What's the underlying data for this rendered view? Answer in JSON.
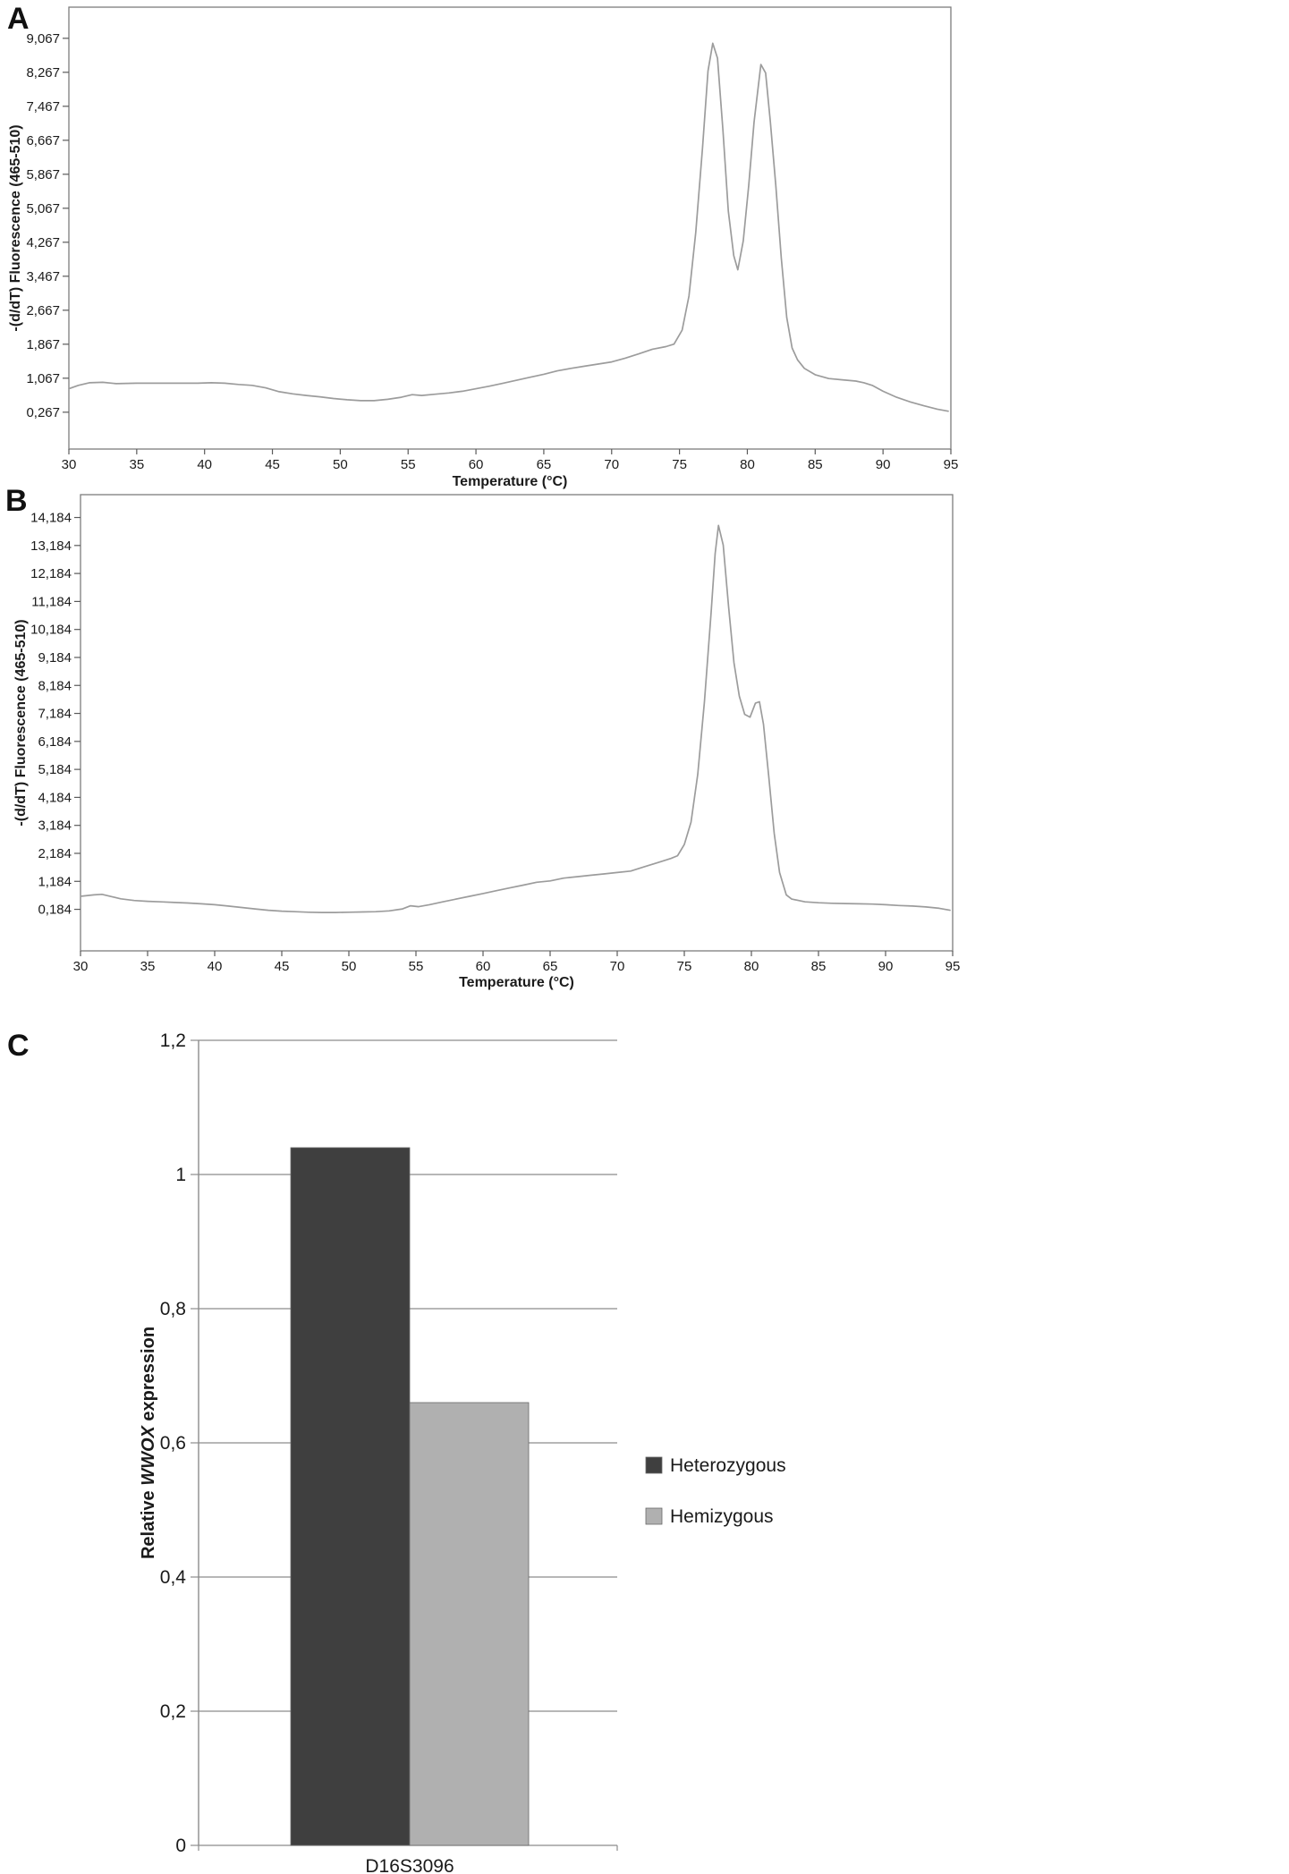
{
  "panels": {
    "a": {
      "label": "A"
    },
    "b": {
      "label": "B"
    },
    "c": {
      "label": "C"
    }
  },
  "chart_data": [
    {
      "id": "panel-a",
      "type": "line",
      "title": "",
      "xlabel": "Temperature (°C)",
      "ylabel": "-(d/dT) Fluorescence (465-510)",
      "xlim": [
        30,
        95
      ],
      "ylim": [
        -0.6,
        9.8
      ],
      "xticks": [
        30,
        35,
        40,
        45,
        50,
        55,
        60,
        65,
        70,
        75,
        80,
        85,
        90,
        95
      ],
      "yticks": [
        {
          "v": 0.267,
          "label": "0,267"
        },
        {
          "v": 1.067,
          "label": "1,067"
        },
        {
          "v": 1.867,
          "label": "1,867"
        },
        {
          "v": 2.667,
          "label": "2,667"
        },
        {
          "v": 3.467,
          "label": "3,467"
        },
        {
          "v": 4.267,
          "label": "4,267"
        },
        {
          "v": 5.067,
          "label": "5,067"
        },
        {
          "v": 5.867,
          "label": "5,867"
        },
        {
          "v": 6.667,
          "label": "6,667"
        },
        {
          "v": 7.467,
          "label": "7,467"
        },
        {
          "v": 8.267,
          "label": "8,267"
        },
        {
          "v": 9.067,
          "label": "9,067"
        }
      ],
      "line_color": "#9c9c9c",
      "points": [
        [
          30,
          0.82
        ],
        [
          30.7,
          0.9
        ],
        [
          31.5,
          0.96
        ],
        [
          32.5,
          0.97
        ],
        [
          33.5,
          0.94
        ],
        [
          35,
          0.95
        ],
        [
          36.5,
          0.95
        ],
        [
          38,
          0.95
        ],
        [
          39.5,
          0.95
        ],
        [
          40.5,
          0.96
        ],
        [
          41.5,
          0.95
        ],
        [
          42.5,
          0.92
        ],
        [
          43.5,
          0.9
        ],
        [
          44.5,
          0.84
        ],
        [
          45.5,
          0.75
        ],
        [
          46.5,
          0.7
        ],
        [
          47.5,
          0.66
        ],
        [
          48.5,
          0.63
        ],
        [
          49.5,
          0.59
        ],
        [
          50.5,
          0.56
        ],
        [
          51.5,
          0.54
        ],
        [
          52.5,
          0.54
        ],
        [
          53.5,
          0.57
        ],
        [
          54.5,
          0.62
        ],
        [
          55.3,
          0.68
        ],
        [
          56,
          0.66
        ],
        [
          57,
          0.69
        ],
        [
          58,
          0.72
        ],
        [
          59,
          0.76
        ],
        [
          60,
          0.82
        ],
        [
          61,
          0.88
        ],
        [
          62,
          0.95
        ],
        [
          63,
          1.02
        ],
        [
          64,
          1.09
        ],
        [
          65,
          1.16
        ],
        [
          66,
          1.24
        ],
        [
          67,
          1.3
        ],
        [
          68,
          1.35
        ],
        [
          69,
          1.4
        ],
        [
          70,
          1.45
        ],
        [
          71,
          1.54
        ],
        [
          72,
          1.64
        ],
        [
          73,
          1.75
        ],
        [
          74,
          1.81
        ],
        [
          74.6,
          1.87
        ],
        [
          75.2,
          2.2
        ],
        [
          75.7,
          3.0
        ],
        [
          76.2,
          4.5
        ],
        [
          76.7,
          6.5
        ],
        [
          77.1,
          8.3
        ],
        [
          77.45,
          8.95
        ],
        [
          77.8,
          8.6
        ],
        [
          78.2,
          6.9
        ],
        [
          78.6,
          5.0
        ],
        [
          79,
          3.95
        ],
        [
          79.3,
          3.62
        ],
        [
          79.7,
          4.3
        ],
        [
          80.1,
          5.6
        ],
        [
          80.5,
          7.1
        ],
        [
          81,
          8.45
        ],
        [
          81.35,
          8.25
        ],
        [
          81.7,
          7.1
        ],
        [
          82.1,
          5.6
        ],
        [
          82.5,
          3.9
        ],
        [
          82.9,
          2.5
        ],
        [
          83.3,
          1.78
        ],
        [
          83.7,
          1.5
        ],
        [
          84.2,
          1.3
        ],
        [
          85,
          1.15
        ],
        [
          86,
          1.06
        ],
        [
          87,
          1.03
        ],
        [
          88,
          1.0
        ],
        [
          88.6,
          0.96
        ],
        [
          89.2,
          0.9
        ],
        [
          90,
          0.76
        ],
        [
          91,
          0.62
        ],
        [
          92,
          0.51
        ],
        [
          93,
          0.42
        ],
        [
          94,
          0.34
        ],
        [
          94.8,
          0.29
        ]
      ]
    },
    {
      "id": "panel-b",
      "type": "line",
      "title": "",
      "xlabel": "Temperature (°C)",
      "ylabel": "-(d/dT) Fluorescence (465-510)",
      "xlim": [
        30,
        95
      ],
      "ylim": [
        -1.3,
        15.0
      ],
      "xticks": [
        30,
        35,
        40,
        45,
        50,
        55,
        60,
        65,
        70,
        75,
        80,
        85,
        90,
        95
      ],
      "yticks": [
        {
          "v": 0.184,
          "label": "0,184"
        },
        {
          "v": 1.184,
          "label": "1,184"
        },
        {
          "v": 2.184,
          "label": "2,184"
        },
        {
          "v": 3.184,
          "label": "3,184"
        },
        {
          "v": 4.184,
          "label": "4,184"
        },
        {
          "v": 5.184,
          "label": "5,184"
        },
        {
          "v": 6.184,
          "label": "6,184"
        },
        {
          "v": 7.184,
          "label": "7,184"
        },
        {
          "v": 8.184,
          "label": "8,184"
        },
        {
          "v": 9.184,
          "label": "9,184"
        },
        {
          "v": 10.184,
          "label": "10,184"
        },
        {
          "v": 11.184,
          "label": "11,184"
        },
        {
          "v": 12.184,
          "label": "12,184"
        },
        {
          "v": 13.184,
          "label": "13,184"
        },
        {
          "v": 14.184,
          "label": "14,184"
        }
      ],
      "line_color": "#9c9c9c",
      "points": [
        [
          30,
          0.65
        ],
        [
          31,
          0.7
        ],
        [
          31.6,
          0.72
        ],
        [
          32.3,
          0.64
        ],
        [
          33,
          0.56
        ],
        [
          34,
          0.5
        ],
        [
          35,
          0.47
        ],
        [
          36,
          0.45
        ],
        [
          37,
          0.43
        ],
        [
          38,
          0.41
        ],
        [
          39,
          0.38
        ],
        [
          40,
          0.35
        ],
        [
          41,
          0.3
        ],
        [
          42,
          0.25
        ],
        [
          43,
          0.2
        ],
        [
          44,
          0.15
        ],
        [
          45,
          0.12
        ],
        [
          46,
          0.1
        ],
        [
          47,
          0.08
        ],
        [
          48,
          0.07
        ],
        [
          49,
          0.07
        ],
        [
          50,
          0.08
        ],
        [
          51,
          0.09
        ],
        [
          52,
          0.1
        ],
        [
          53,
          0.13
        ],
        [
          54,
          0.2
        ],
        [
          54.6,
          0.31
        ],
        [
          55.2,
          0.28
        ],
        [
          56,
          0.35
        ],
        [
          57,
          0.45
        ],
        [
          58,
          0.55
        ],
        [
          59,
          0.65
        ],
        [
          60,
          0.75
        ],
        [
          61,
          0.85
        ],
        [
          62,
          0.95
        ],
        [
          63,
          1.05
        ],
        [
          64,
          1.15
        ],
        [
          65,
          1.2
        ],
        [
          66,
          1.3
        ],
        [
          67,
          1.35
        ],
        [
          68,
          1.4
        ],
        [
          69,
          1.45
        ],
        [
          70,
          1.5
        ],
        [
          71,
          1.55
        ],
        [
          72,
          1.7
        ],
        [
          73,
          1.85
        ],
        [
          74,
          2.0
        ],
        [
          74.5,
          2.1
        ],
        [
          75,
          2.5
        ],
        [
          75.5,
          3.3
        ],
        [
          76,
          5.0
        ],
        [
          76.5,
          7.6
        ],
        [
          77,
          10.8
        ],
        [
          77.3,
          12.9
        ],
        [
          77.55,
          13.9
        ],
        [
          77.9,
          13.2
        ],
        [
          78.3,
          11.0
        ],
        [
          78.7,
          9.0
        ],
        [
          79.1,
          7.8
        ],
        [
          79.5,
          7.15
        ],
        [
          79.9,
          7.05
        ],
        [
          80.3,
          7.55
        ],
        [
          80.6,
          7.6
        ],
        [
          80.9,
          6.8
        ],
        [
          81.3,
          4.9
        ],
        [
          81.7,
          2.9
        ],
        [
          82.1,
          1.5
        ],
        [
          82.6,
          0.7
        ],
        [
          83,
          0.55
        ],
        [
          84,
          0.45
        ],
        [
          85,
          0.42
        ],
        [
          86,
          0.4
        ],
        [
          87,
          0.39
        ],
        [
          88,
          0.38
        ],
        [
          89,
          0.37
        ],
        [
          90,
          0.35
        ],
        [
          91,
          0.32
        ],
        [
          92,
          0.3
        ],
        [
          93,
          0.27
        ],
        [
          94,
          0.22
        ],
        [
          94.8,
          0.15
        ]
      ]
    },
    {
      "id": "panel-c",
      "type": "bar",
      "title": "",
      "categories": [
        "D16S3096"
      ],
      "series": [
        {
          "name": "Heterozygous",
          "color": "#3f3f3f",
          "values": [
            1.04
          ]
        },
        {
          "name": "Hemizygous",
          "color": "#b0b0b0",
          "values": [
            0.66
          ]
        }
      ],
      "ylabel_parts": [
        {
          "text": "Relative ",
          "italic": false
        },
        {
          "text": "WWOX",
          "italic": true
        },
        {
          "text": " expression",
          "italic": false
        }
      ],
      "ylim": [
        0,
        1.2
      ],
      "yticks": [
        {
          "v": 0,
          "label": "0"
        },
        {
          "v": 0.2,
          "label": "0,2"
        },
        {
          "v": 0.4,
          "label": "0,4"
        },
        {
          "v": 0.6,
          "label": "0,6"
        },
        {
          "v": 0.8,
          "label": "0,8"
        },
        {
          "v": 1,
          "label": "1"
        },
        {
          "v": 1.2,
          "label": "1,2"
        }
      ],
      "legend_position": "right",
      "grid": true
    }
  ]
}
